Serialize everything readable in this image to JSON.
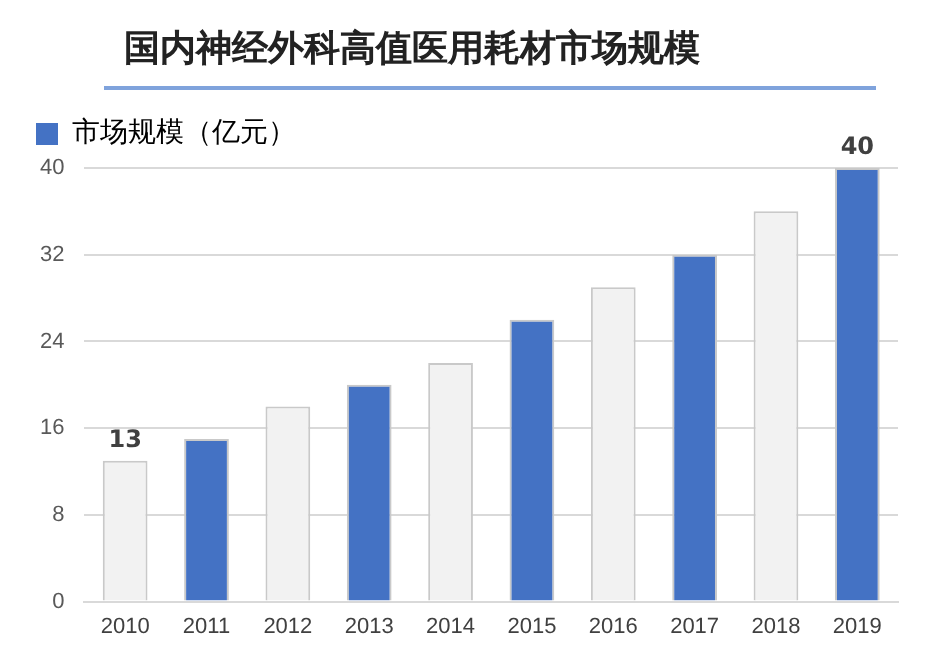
{
  "chart_data": {
    "type": "bar",
    "title": "国内神经外科高值医用耗材市场规模",
    "categories": [
      "2010",
      "2011",
      "2012",
      "2013",
      "2014",
      "2015",
      "2016",
      "2017",
      "2018",
      "2019"
    ],
    "series": [
      {
        "name": "市场规模（亿元）",
        "color": "#4472c4",
        "colors": [
          "#f2f2f2",
          "#4472c4",
          "#f2f2f2",
          "#4472c4",
          "#f2f2f2",
          "#4472c4",
          "#f2f2f2",
          "#4472c4",
          "#f2f2f2",
          "#4472c4"
        ],
        "values": [
          13,
          15,
          18,
          20,
          22,
          26,
          29,
          32,
          36,
          40
        ],
        "value_labels": [
          "13",
          null,
          null,
          null,
          null,
          null,
          null,
          null,
          null,
          "40"
        ]
      }
    ],
    "ylim": [
      0,
      40
    ],
    "yticks": [
      0,
      8,
      16,
      24,
      32,
      40
    ],
    "grid": "y",
    "legend": "top left"
  }
}
